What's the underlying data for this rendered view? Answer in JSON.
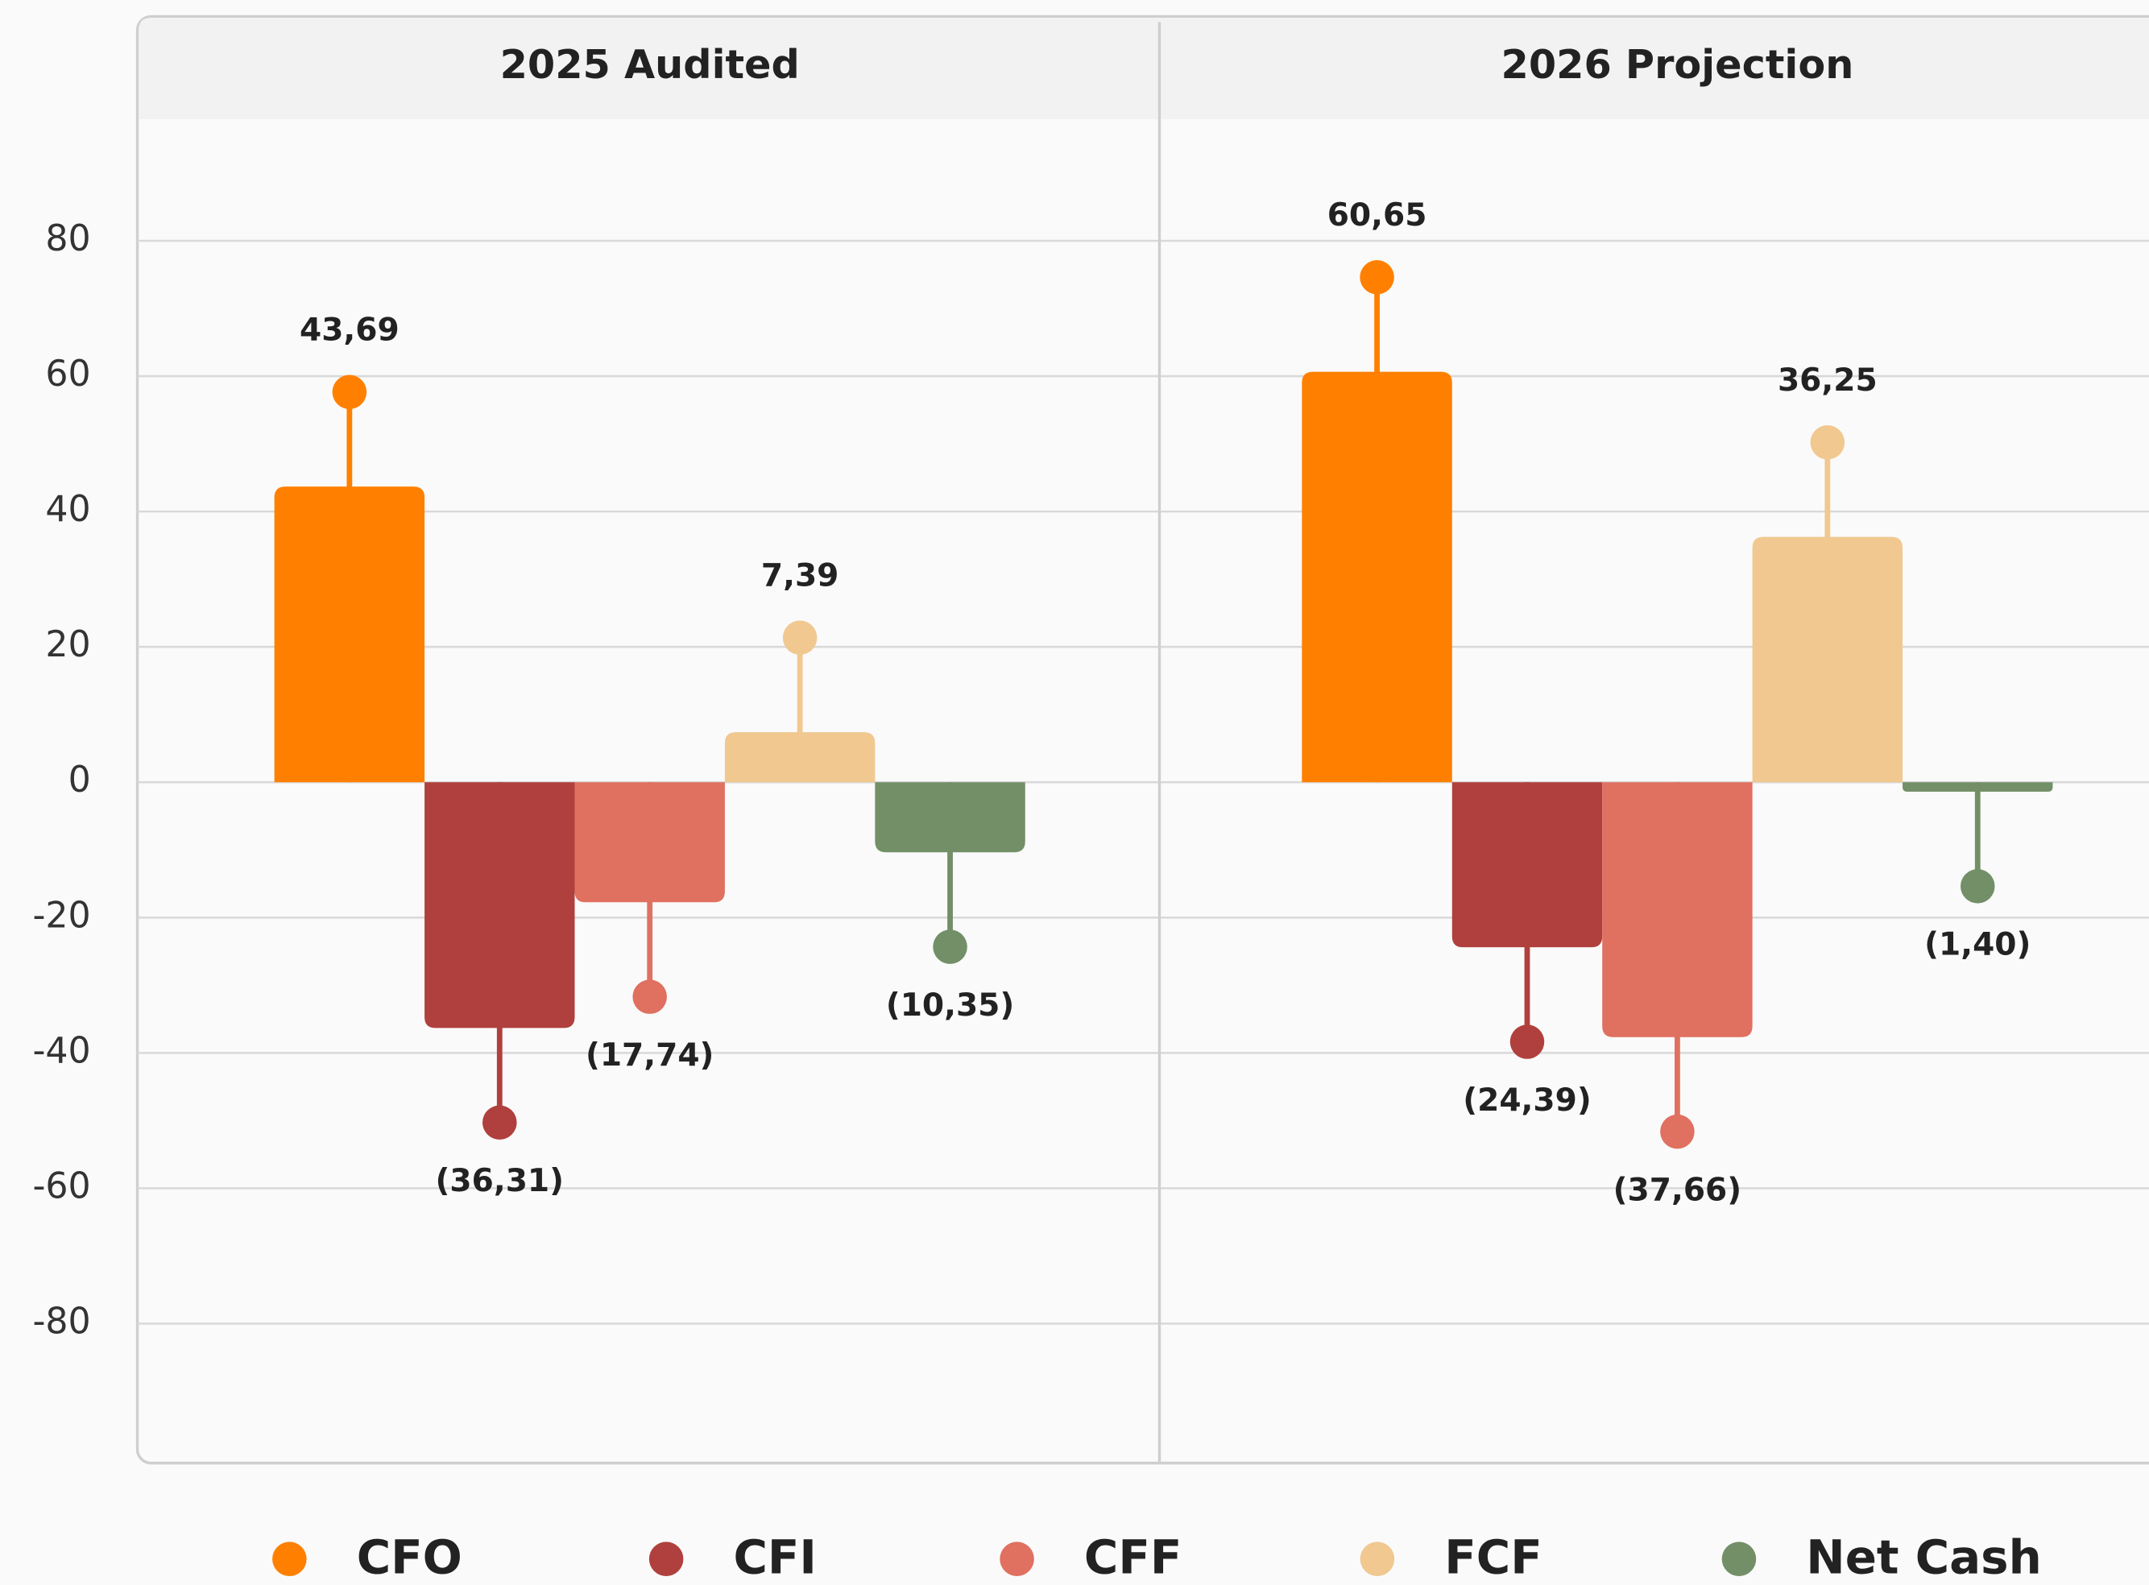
{
  "chart_data": {
    "type": "bar",
    "categories": [
      "2025 Audited",
      "2026 Projection"
    ],
    "series": [
      {
        "name": "CFO",
        "color": "#ff8000",
        "values": [
          43.69,
          60.65
        ],
        "value_labels": [
          "43,69",
          "60,65"
        ]
      },
      {
        "name": "CFI",
        "color": "#b0403d",
        "values": [
          -36.31,
          -24.39
        ],
        "value_labels": [
          "(36,31)",
          "(24,39)"
        ]
      },
      {
        "name": "CFF",
        "color": "#e07060",
        "values": [
          -17.74,
          -37.66
        ],
        "value_labels": [
          "(17,74)",
          "(37,66)"
        ]
      },
      {
        "name": "FCF",
        "color": "#f0c890",
        "values": [
          7.39,
          36.25
        ],
        "value_labels": [
          "7,39",
          "36,25"
        ]
      },
      {
        "name": "Net Cash",
        "color": "#738f68",
        "values": [
          -10.35,
          -1.4
        ],
        "value_labels": [
          "(10,35)",
          "(1,40)"
        ]
      }
    ],
    "ylim": [
      -100,
      100
    ],
    "yticks": [
      -80,
      -60,
      -40,
      -20,
      0,
      20,
      40,
      60,
      80
    ],
    "grid": true,
    "legend": "bottom"
  }
}
